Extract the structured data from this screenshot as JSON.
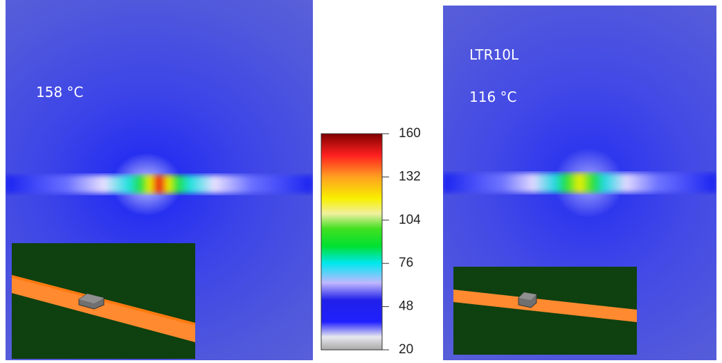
{
  "left_panel": {
    "label": "158 °C"
  },
  "right_panel": {
    "title": "LTR10L",
    "label": "116 °C"
  },
  "colorbar": {
    "range": [
      20,
      160
    ],
    "ticks": [
      20,
      48,
      76,
      104,
      132,
      160
    ]
  }
}
